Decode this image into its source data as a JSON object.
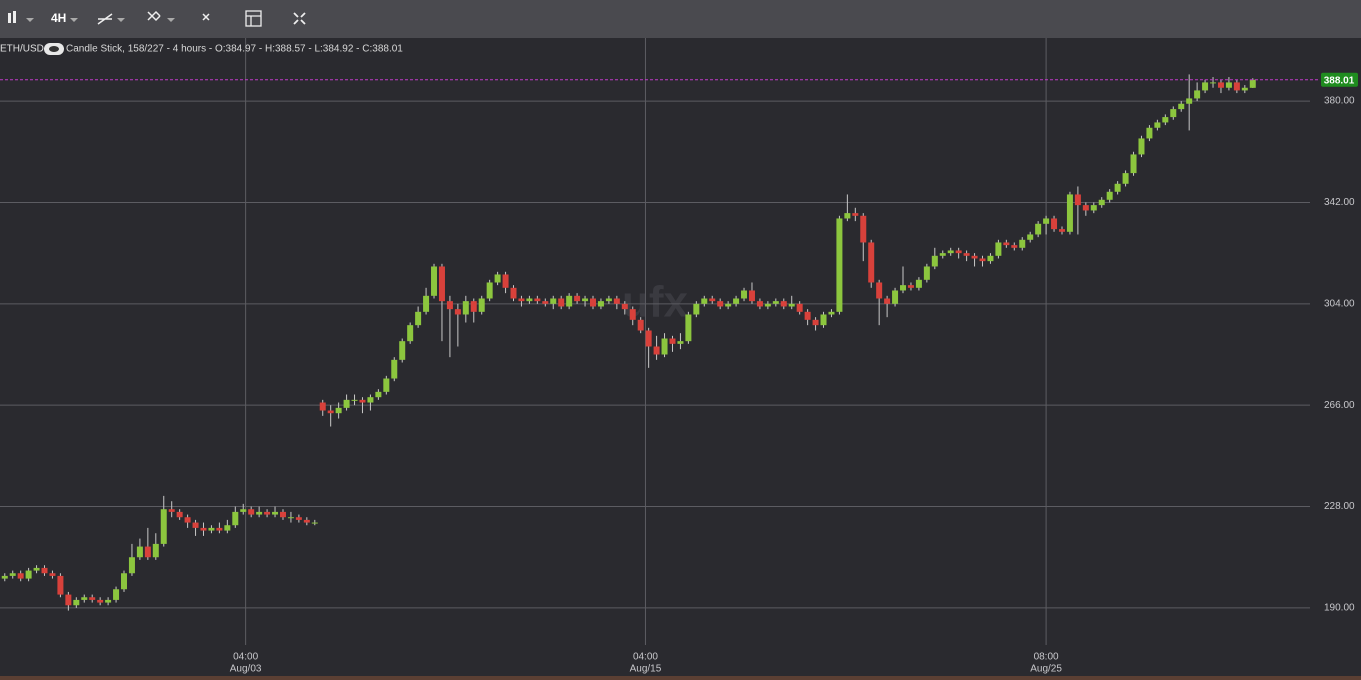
{
  "toolbar": {
    "interval": "4H"
  },
  "chart_data": {
    "type": "candlestick",
    "symbol": "ETH/USD",
    "info": "Candle Stick, 158/227 - 4 hours - O:384.97 - H:388.57 - L:384.92 - C:388.01",
    "watermark": "ufx",
    "open": [
      201,
      202,
      203,
      201,
      204,
      205,
      203,
      202,
      195,
      191,
      193,
      194,
      193,
      192,
      193,
      197,
      203,
      209,
      213,
      209,
      214,
      227,
      226,
      224,
      222,
      220,
      219,
      220,
      219,
      221,
      226,
      227,
      225,
      226,
      225,
      226,
      224,
      224,
      223,
      222,
      267,
      264,
      263,
      265,
      268,
      268,
      267,
      269,
      271,
      276,
      283,
      290,
      296,
      301,
      307,
      318,
      305,
      302,
      300,
      305,
      301,
      306,
      312,
      315,
      310,
      306,
      305,
      306,
      305,
      304,
      306,
      303,
      307,
      305,
      306,
      303,
      305,
      306,
      304,
      302,
      298,
      294,
      288,
      285,
      291,
      289,
      290,
      300,
      304,
      306,
      305,
      303,
      304,
      306,
      309,
      305,
      303,
      304,
      305,
      303,
      304,
      301,
      298,
      296,
      300,
      301,
      336,
      338,
      337,
      327,
      312,
      306,
      304,
      309,
      311,
      310,
      313,
      318,
      322,
      323,
      324,
      323,
      322,
      321,
      320,
      322,
      327,
      326,
      325,
      328,
      330,
      334,
      336,
      332,
      331,
      345,
      341,
      339,
      341,
      343,
      346,
      349,
      353,
      360,
      366,
      370,
      372,
      374,
      377,
      379,
      381,
      384,
      387,
      387,
      385,
      387,
      384,
      384.97
    ],
    "high": [
      203,
      204,
      204,
      205,
      206,
      206,
      204,
      203,
      196,
      194,
      195,
      195,
      194,
      194,
      198,
      204,
      214,
      216,
      220,
      218,
      232,
      230,
      227,
      225,
      223,
      222,
      221,
      222,
      223,
      228,
      229,
      228,
      228,
      227,
      228,
      227,
      226,
      225,
      224,
      223,
      268,
      266,
      267,
      270,
      270,
      269,
      270,
      272,
      277,
      284,
      291,
      297,
      303,
      310,
      319,
      319,
      307,
      304,
      307,
      306,
      307,
      313,
      316,
      316,
      311,
      307,
      307,
      307,
      306,
      307,
      307,
      308,
      308,
      307,
      307,
      306,
      307,
      307,
      305,
      303,
      299,
      295,
      292,
      293,
      292,
      293,
      301,
      305,
      307,
      307,
      306,
      305,
      307,
      310,
      312,
      306,
      305,
      306,
      306,
      307,
      305,
      302,
      299,
      301,
      302,
      337,
      345,
      340,
      338,
      328,
      313,
      307,
      310,
      318,
      312,
      314,
      319,
      325,
      324,
      325,
      325,
      324,
      323,
      322,
      323,
      328,
      328,
      327,
      329,
      331,
      335,
      337,
      337,
      333,
      346,
      348,
      342,
      342,
      344,
      347,
      350,
      354,
      361,
      367,
      371,
      373,
      375,
      378,
      380,
      390,
      387,
      388,
      389,
      388,
      389,
      388,
      386,
      388.57
    ],
    "low": [
      200,
      201,
      200,
      200,
      203,
      202,
      201,
      194,
      189,
      190,
      192,
      192,
      191,
      191,
      192,
      196,
      202,
      208,
      208,
      208,
      213,
      224,
      223,
      220,
      217,
      217,
      218,
      218,
      218,
      220,
      225,
      224,
      224,
      224,
      224,
      223,
      222,
      222,
      221,
      221,
      262,
      258,
      261,
      264,
      266,
      263,
      264,
      268,
      270,
      275,
      282,
      289,
      295,
      300,
      306,
      290,
      284,
      288,
      297,
      297,
      300,
      305,
      311,
      308,
      305,
      303,
      304,
      304,
      303,
      302,
      302,
      302,
      304,
      303,
      302,
      302,
      304,
      302,
      300,
      296,
      293,
      280,
      283,
      284,
      286,
      287,
      289,
      299,
      303,
      304,
      302,
      302,
      303,
      305,
      304,
      302,
      302,
      303,
      302,
      302,
      300,
      296,
      294,
      295,
      299,
      300,
      335,
      335,
      320,
      310,
      296,
      299,
      303,
      308,
      309,
      309,
      312,
      317,
      321,
      322,
      321,
      320,
      318,
      318,
      319,
      321,
      325,
      324,
      324,
      327,
      329,
      330,
      331,
      330,
      330,
      330,
      337,
      338,
      340,
      342,
      345,
      348,
      352,
      359,
      365,
      369,
      371,
      373,
      376,
      369,
      380,
      383,
      385,
      383,
      384,
      383,
      383,
      384.92
    ],
    "close": [
      202,
      203,
      201,
      204,
      205,
      203,
      202,
      195,
      191,
      193,
      194,
      193,
      192,
      193,
      197,
      203,
      209,
      213,
      209,
      214,
      227,
      226,
      224,
      222,
      220,
      219,
      220,
      219,
      221,
      226,
      227,
      225,
      226,
      225,
      226,
      224,
      224,
      223,
      222,
      222,
      264,
      263,
      265,
      268,
      268,
      267,
      269,
      271,
      276,
      283,
      290,
      296,
      301,
      307,
      318,
      305,
      302,
      300,
      305,
      301,
      306,
      312,
      315,
      310,
      306,
      305,
      306,
      305,
      304,
      306,
      303,
      307,
      305,
      306,
      303,
      305,
      306,
      304,
      302,
      298,
      294,
      288,
      285,
      291,
      289,
      290,
      300,
      304,
      306,
      305,
      303,
      304,
      306,
      309,
      305,
      303,
      304,
      305,
      303,
      304,
      301,
      298,
      296,
      300,
      301,
      336,
      338,
      337,
      327,
      312,
      306,
      304,
      309,
      311,
      310,
      313,
      318,
      322,
      323,
      324,
      323,
      322,
      321,
      320,
      322,
      327,
      326,
      325,
      328,
      330,
      334,
      336,
      332,
      331,
      345,
      341,
      339,
      341,
      343,
      346,
      349,
      353,
      360,
      366,
      370,
      372,
      374,
      377,
      379,
      381,
      384,
      387,
      387,
      385,
      387,
      384,
      385,
      388.01
    ],
    "up_color": "#8cc63e",
    "down_color": "#d8413b",
    "last_line_color": "#c03ac8",
    "xlim": [
      -0.6,
      164.2
    ],
    "xticks": [
      {
        "value": 30.3,
        "label": "04:00"
      },
      {
        "value": 80.6,
        "label": "04:00"
      },
      {
        "value": 131,
        "label": "08:00"
      }
    ],
    "xtick_dates": [
      "Aug/03",
      "Aug/15",
      "Aug/25"
    ],
    "ylim": [
      176.1,
      402.9
    ],
    "yticks": [
      {
        "value": 190,
        "label": "190.00"
      },
      {
        "value": 228,
        "label": "228.00"
      },
      {
        "value": 266,
        "label": "266.00"
      },
      {
        "value": 304,
        "label": "304.00"
      },
      {
        "value": 342,
        "label": "342.00"
      },
      {
        "value": 380,
        "label": "380.00"
      }
    ],
    "grid": true
  }
}
